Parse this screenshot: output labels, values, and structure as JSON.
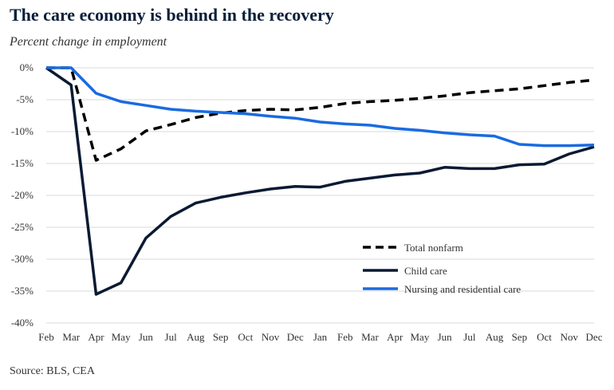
{
  "title": "The care economy is behind in the recovery",
  "subtitle": "Percent change in employment",
  "source": "Source: BLS, CEA",
  "chart_data": {
    "type": "line",
    "x": [
      "Feb",
      "Mar",
      "Apr",
      "May",
      "Jun",
      "Jul",
      "Aug",
      "Sep",
      "Oct",
      "Nov",
      "Dec",
      "Jan",
      "Feb",
      "Mar",
      "Apr",
      "May",
      "Jun",
      "Jul",
      "Aug",
      "Sep",
      "Oct",
      "Nov",
      "Dec"
    ],
    "ylim": [
      -40,
      0
    ],
    "yticks": [
      0,
      -5,
      -10,
      -15,
      -20,
      -25,
      -30,
      -35,
      -40
    ],
    "ytick_labels": [
      "0%",
      "-5%",
      "-10%",
      "-15%",
      "-20%",
      "-25%",
      "-30%",
      "-35%",
      "-40%"
    ],
    "grid": true,
    "legend_position": "bottom-right",
    "series": [
      {
        "name": "Total nonfarm",
        "color": "#000000",
        "dash": true,
        "values": [
          0,
          0,
          -14.5,
          -12.7,
          -9.9,
          -8.9,
          -7.8,
          -7.1,
          -6.7,
          -6.5,
          -6.6,
          -6.2,
          -5.6,
          -5.3,
          -5.1,
          -4.8,
          -4.4,
          -3.9,
          -3.6,
          -3.3,
          -2.8,
          -2.3,
          -1.9
        ]
      },
      {
        "name": "Child care",
        "color": "#0b1a33",
        "dash": false,
        "values": [
          0,
          -2.7,
          -35.5,
          -33.7,
          -26.7,
          -23.3,
          -21.2,
          -20.3,
          -19.6,
          -19.0,
          -18.6,
          -18.7,
          -17.8,
          -17.3,
          -16.8,
          -16.5,
          -15.6,
          -15.8,
          -15.8,
          -15.2,
          -15.1,
          -13.5,
          -12.4
        ]
      },
      {
        "name": "Nursing and residential care",
        "color": "#1a6be0",
        "dash": false,
        "values": [
          0,
          0,
          -4.0,
          -5.3,
          -5.9,
          -6.5,
          -6.8,
          -7.0,
          -7.2,
          -7.6,
          -7.9,
          -8.5,
          -8.8,
          -9.0,
          -9.5,
          -9.8,
          -10.2,
          -10.5,
          -10.7,
          -12.0,
          -12.2,
          -12.2,
          -12.1
        ]
      }
    ]
  }
}
